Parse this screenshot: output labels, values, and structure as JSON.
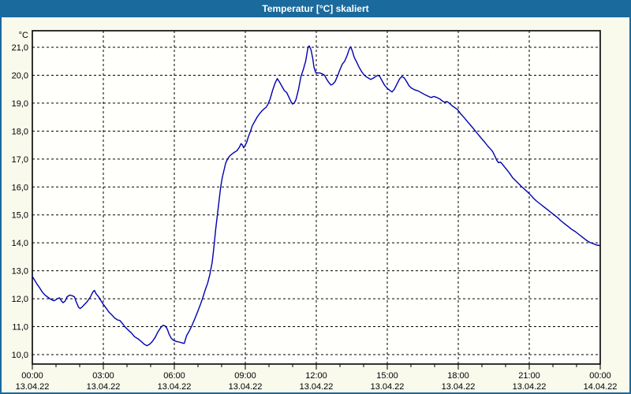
{
  "window": {
    "title": "Temperatur [°C] skaliert"
  },
  "colors": {
    "titlebar_bg": "#1b6a9d",
    "titlebar_text": "#ffffff",
    "window_border": "#1b6a9d",
    "margin_bg": "#f9f9ec",
    "plot_bg": "#fffffb",
    "grid": "#000000",
    "axis": "#000000",
    "label": "#000000",
    "series": "#0000b0"
  },
  "chart_data": {
    "type": "line",
    "title": "Temperatur [°C] skaliert",
    "ylabel": "°C",
    "xlabel": "",
    "grid": true,
    "legend_position": "none",
    "y_axis": {
      "unit": "°C",
      "min": 10.0,
      "max": 21.0,
      "tick_step": 1.0,
      "tick_labels": [
        "21,0",
        "20,0",
        "19,0",
        "18,0",
        "17,0",
        "16,0",
        "15,0",
        "14,0",
        "13,0",
        "12,0",
        "11,0",
        "10,0"
      ]
    },
    "x_axis": {
      "range_hours": [
        0,
        24
      ],
      "major_tick_every_hours": 3,
      "minor_tick_every_hours": 1,
      "ticks": [
        {
          "time": "00:00",
          "date": "13.04.22"
        },
        {
          "time": "03:00",
          "date": "13.04.22"
        },
        {
          "time": "06:00",
          "date": "13.04.22"
        },
        {
          "time": "09:00",
          "date": "13.04.22"
        },
        {
          "time": "12:00",
          "date": "13.04.22"
        },
        {
          "time": "15:00",
          "date": "13.04.22"
        },
        {
          "time": "18:00",
          "date": "13.04.22"
        },
        {
          "time": "21:00",
          "date": "13.04.22"
        },
        {
          "time": "00:00",
          "date": "14.04.22"
        }
      ]
    },
    "series": [
      {
        "name": "Temperatur [°C] skaliert",
        "color": "#0000b0",
        "points": [
          [
            0.0,
            12.8
          ],
          [
            0.1,
            12.66
          ],
          [
            0.2,
            12.52
          ],
          [
            0.3,
            12.4
          ],
          [
            0.42,
            12.24
          ],
          [
            0.52,
            12.14
          ],
          [
            0.63,
            12.07
          ],
          [
            0.74,
            12.0
          ],
          [
            0.85,
            11.95
          ],
          [
            0.92,
            11.93
          ],
          [
            1.0,
            11.97
          ],
          [
            1.08,
            12.01
          ],
          [
            1.15,
            12.03
          ],
          [
            1.24,
            11.91
          ],
          [
            1.3,
            11.86
          ],
          [
            1.38,
            11.91
          ],
          [
            1.47,
            12.07
          ],
          [
            1.58,
            12.13
          ],
          [
            1.68,
            12.11
          ],
          [
            1.78,
            12.07
          ],
          [
            1.85,
            11.9
          ],
          [
            1.95,
            11.7
          ],
          [
            2.02,
            11.65
          ],
          [
            2.1,
            11.7
          ],
          [
            2.2,
            11.79
          ],
          [
            2.32,
            11.9
          ],
          [
            2.45,
            12.06
          ],
          [
            2.55,
            12.23
          ],
          [
            2.62,
            12.3
          ],
          [
            2.7,
            12.17
          ],
          [
            2.8,
            12.07
          ],
          [
            2.9,
            11.93
          ],
          [
            3.0,
            11.8
          ],
          [
            3.12,
            11.66
          ],
          [
            3.24,
            11.52
          ],
          [
            3.36,
            11.42
          ],
          [
            3.48,
            11.31
          ],
          [
            3.6,
            11.24
          ],
          [
            3.7,
            11.22
          ],
          [
            3.82,
            11.1
          ],
          [
            3.93,
            10.98
          ],
          [
            4.05,
            10.88
          ],
          [
            4.18,
            10.78
          ],
          [
            4.32,
            10.64
          ],
          [
            4.47,
            10.56
          ],
          [
            4.6,
            10.47
          ],
          [
            4.73,
            10.37
          ],
          [
            4.85,
            10.32
          ],
          [
            4.97,
            10.38
          ],
          [
            5.08,
            10.48
          ],
          [
            5.2,
            10.63
          ],
          [
            5.3,
            10.8
          ],
          [
            5.42,
            10.96
          ],
          [
            5.52,
            11.05
          ],
          [
            5.62,
            11.02
          ],
          [
            5.7,
            10.92
          ],
          [
            5.78,
            10.73
          ],
          [
            5.86,
            10.6
          ],
          [
            5.95,
            10.52
          ],
          [
            6.08,
            10.47
          ],
          [
            6.2,
            10.45
          ],
          [
            6.32,
            10.42
          ],
          [
            6.42,
            10.4
          ],
          [
            6.52,
            10.68
          ],
          [
            6.63,
            10.84
          ],
          [
            6.74,
            11.03
          ],
          [
            6.86,
            11.27
          ],
          [
            6.97,
            11.5
          ],
          [
            7.08,
            11.74
          ],
          [
            7.19,
            12.0
          ],
          [
            7.3,
            12.3
          ],
          [
            7.41,
            12.56
          ],
          [
            7.5,
            12.86
          ],
          [
            7.6,
            13.3
          ],
          [
            7.68,
            13.9
          ],
          [
            7.75,
            14.5
          ],
          [
            7.82,
            15.0
          ],
          [
            7.89,
            15.5
          ],
          [
            7.96,
            16.0
          ],
          [
            8.03,
            16.35
          ],
          [
            8.1,
            16.6
          ],
          [
            8.17,
            16.85
          ],
          [
            8.25,
            17.0
          ],
          [
            8.35,
            17.12
          ],
          [
            8.5,
            17.22
          ],
          [
            8.65,
            17.3
          ],
          [
            8.75,
            17.42
          ],
          [
            8.82,
            17.55
          ],
          [
            8.88,
            17.5
          ],
          [
            8.93,
            17.4
          ],
          [
            9.0,
            17.5
          ],
          [
            9.06,
            17.6
          ],
          [
            9.13,
            17.8
          ],
          [
            9.2,
            17.95
          ],
          [
            9.3,
            18.2
          ],
          [
            9.4,
            18.35
          ],
          [
            9.5,
            18.5
          ],
          [
            9.6,
            18.62
          ],
          [
            9.7,
            18.72
          ],
          [
            9.8,
            18.8
          ],
          [
            9.88,
            18.85
          ],
          [
            9.95,
            18.95
          ],
          [
            10.05,
            19.15
          ],
          [
            10.15,
            19.45
          ],
          [
            10.25,
            19.7
          ],
          [
            10.35,
            19.88
          ],
          [
            10.45,
            19.75
          ],
          [
            10.55,
            19.6
          ],
          [
            10.65,
            19.45
          ],
          [
            10.75,
            19.38
          ],
          [
            10.85,
            19.2
          ],
          [
            10.95,
            19.02
          ],
          [
            11.0,
            18.97
          ],
          [
            11.07,
            19.0
          ],
          [
            11.15,
            19.15
          ],
          [
            11.25,
            19.5
          ],
          [
            11.35,
            19.95
          ],
          [
            11.45,
            20.2
          ],
          [
            11.55,
            20.5
          ],
          [
            11.65,
            21.0
          ],
          [
            11.7,
            21.05
          ],
          [
            11.78,
            20.9
          ],
          [
            11.85,
            20.6
          ],
          [
            11.9,
            20.3
          ],
          [
            11.97,
            20.1
          ],
          [
            12.05,
            20.08
          ],
          [
            12.15,
            20.08
          ],
          [
            12.25,
            20.05
          ],
          [
            12.35,
            20.0
          ],
          [
            12.43,
            19.87
          ],
          [
            12.52,
            19.75
          ],
          [
            12.62,
            19.65
          ],
          [
            12.7,
            19.68
          ],
          [
            12.8,
            19.78
          ],
          [
            12.9,
            19.98
          ],
          [
            13.0,
            20.2
          ],
          [
            13.1,
            20.4
          ],
          [
            13.2,
            20.5
          ],
          [
            13.3,
            20.7
          ],
          [
            13.4,
            20.95
          ],
          [
            13.45,
            21.02
          ],
          [
            13.52,
            20.88
          ],
          [
            13.6,
            20.65
          ],
          [
            13.7,
            20.48
          ],
          [
            13.8,
            20.3
          ],
          [
            13.9,
            20.15
          ],
          [
            14.0,
            20.03
          ],
          [
            14.1,
            19.95
          ],
          [
            14.2,
            19.9
          ],
          [
            14.3,
            19.85
          ],
          [
            14.42,
            19.9
          ],
          [
            14.52,
            19.96
          ],
          [
            14.6,
            20.0
          ],
          [
            14.68,
            19.96
          ],
          [
            14.78,
            19.8
          ],
          [
            14.88,
            19.65
          ],
          [
            15.0,
            19.53
          ],
          [
            15.1,
            19.46
          ],
          [
            15.2,
            19.4
          ],
          [
            15.3,
            19.5
          ],
          [
            15.42,
            19.7
          ],
          [
            15.52,
            19.87
          ],
          [
            15.62,
            19.96
          ],
          [
            15.72,
            19.9
          ],
          [
            15.82,
            19.77
          ],
          [
            15.92,
            19.62
          ],
          [
            16.02,
            19.54
          ],
          [
            16.15,
            19.48
          ],
          [
            16.3,
            19.44
          ],
          [
            16.45,
            19.37
          ],
          [
            16.6,
            19.3
          ],
          [
            16.72,
            19.25
          ],
          [
            16.85,
            19.2
          ],
          [
            16.97,
            19.24
          ],
          [
            17.1,
            19.2
          ],
          [
            17.22,
            19.15
          ],
          [
            17.32,
            19.08
          ],
          [
            17.42,
            19.03
          ],
          [
            17.52,
            19.06
          ],
          [
            17.62,
            19.0
          ],
          [
            17.75,
            18.9
          ],
          [
            17.87,
            18.83
          ],
          [
            17.97,
            18.77
          ],
          [
            18.1,
            18.62
          ],
          [
            18.25,
            18.48
          ],
          [
            18.4,
            18.33
          ],
          [
            18.55,
            18.18
          ],
          [
            18.7,
            18.03
          ],
          [
            18.85,
            17.87
          ],
          [
            19.0,
            17.72
          ],
          [
            19.12,
            17.6
          ],
          [
            19.25,
            17.46
          ],
          [
            19.35,
            17.37
          ],
          [
            19.45,
            17.27
          ],
          [
            19.55,
            17.1
          ],
          [
            19.63,
            16.95
          ],
          [
            19.7,
            16.87
          ],
          [
            19.78,
            16.89
          ],
          [
            19.85,
            16.83
          ],
          [
            19.95,
            16.72
          ],
          [
            20.07,
            16.6
          ],
          [
            20.18,
            16.48
          ],
          [
            20.3,
            16.33
          ],
          [
            20.42,
            16.23
          ],
          [
            20.55,
            16.12
          ],
          [
            20.67,
            16.02
          ],
          [
            20.8,
            15.92
          ],
          [
            20.93,
            15.82
          ],
          [
            21.05,
            15.72
          ],
          [
            21.18,
            15.6
          ],
          [
            21.3,
            15.5
          ],
          [
            21.45,
            15.4
          ],
          [
            21.6,
            15.3
          ],
          [
            21.75,
            15.2
          ],
          [
            21.9,
            15.1
          ],
          [
            22.05,
            15.0
          ],
          [
            22.2,
            14.9
          ],
          [
            22.35,
            14.78
          ],
          [
            22.5,
            14.68
          ],
          [
            22.65,
            14.58
          ],
          [
            22.8,
            14.48
          ],
          [
            22.95,
            14.4
          ],
          [
            23.1,
            14.3
          ],
          [
            23.25,
            14.2
          ],
          [
            23.4,
            14.1
          ],
          [
            23.55,
            14.02
          ],
          [
            23.7,
            13.97
          ],
          [
            23.85,
            13.92
          ],
          [
            24.0,
            13.9
          ]
        ]
      }
    ]
  }
}
